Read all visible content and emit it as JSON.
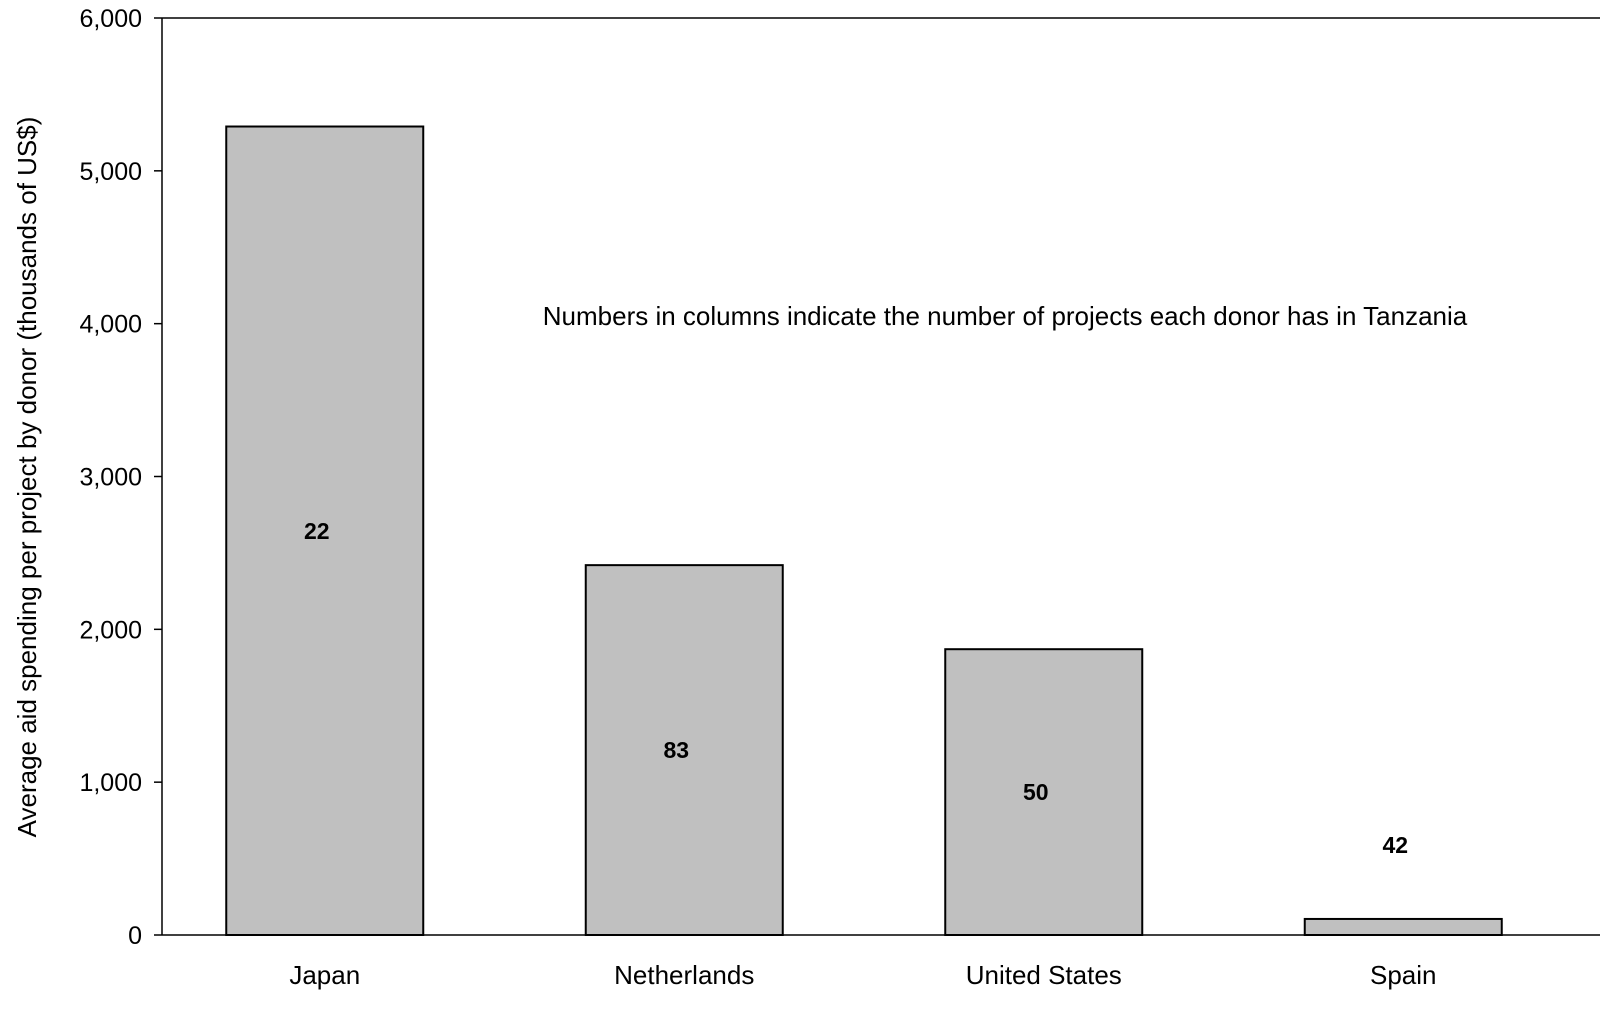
{
  "chart_data": {
    "type": "bar",
    "categories": [
      "Japan",
      "Netherlands",
      "United States",
      "Spain"
    ],
    "values": [
      5290,
      2420,
      1870,
      105
    ],
    "bar_labels": [
      "22",
      "83",
      "50",
      "42"
    ],
    "ylabel": "Average aid spending per project by donor (thousands of US$)",
    "xlabel": "",
    "ylim": [
      0,
      6000
    ],
    "yticks": [
      0,
      1000,
      2000,
      3000,
      4000,
      5000,
      6000
    ],
    "ytick_labels": [
      "0",
      "1,000",
      "2,000",
      "3,000",
      "4,000",
      "5,000",
      "6,000"
    ],
    "annotation": "Numbers in columns indicate the number of projects each donor has in Tanzania",
    "grid": false,
    "legend": "none",
    "colors": {
      "bar_fill": "#c0c0c0",
      "bar_stroke": "#000000",
      "axis": "#000000"
    }
  }
}
